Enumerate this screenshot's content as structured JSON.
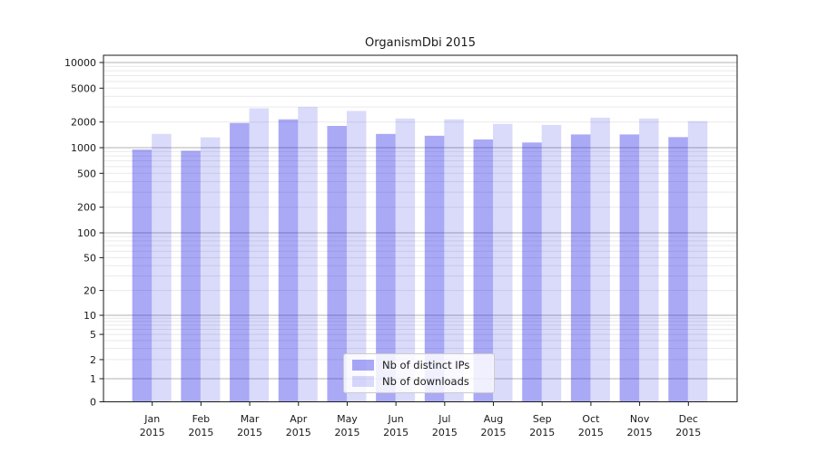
{
  "title": "OrganismDbi 2015",
  "chart_data": {
    "type": "bar",
    "title": "OrganismDbi 2015",
    "months": [
      "Jan",
      "Feb",
      "Mar",
      "Apr",
      "May",
      "Jun",
      "Jul",
      "Aug",
      "Sep",
      "Oct",
      "Nov",
      "Dec"
    ],
    "year": "2015",
    "series": [
      {
        "name": "Nb of distinct IPs",
        "color": "#0a0ae6",
        "alpha": 0.35,
        "values": [
          950,
          920,
          1950,
          2150,
          1800,
          1450,
          1380,
          1250,
          1150,
          1430,
          1430,
          1330
        ]
      },
      {
        "name": "Nb of downloads",
        "color": "#0a0ae6",
        "alpha": 0.15,
        "values": [
          1450,
          1320,
          2900,
          3000,
          2700,
          2200,
          2150,
          1900,
          1850,
          2250,
          2200,
          2050
        ]
      }
    ],
    "yscale": "symlog",
    "ylim": [
      0,
      10000
    ],
    "ytick_values": [
      0,
      1,
      2,
      5,
      10,
      20,
      50,
      100,
      200,
      500,
      1000,
      2000,
      5000,
      10000
    ],
    "major_grid_values": [
      1,
      10,
      100,
      1000,
      10000
    ],
    "grid": true,
    "legend_position": "lower center",
    "colors": {
      "major_grid": "#b2b2b2",
      "minor_grid": "#e9e9e9",
      "axis": "#1a1a1a",
      "text": "#1a1a1a"
    }
  }
}
